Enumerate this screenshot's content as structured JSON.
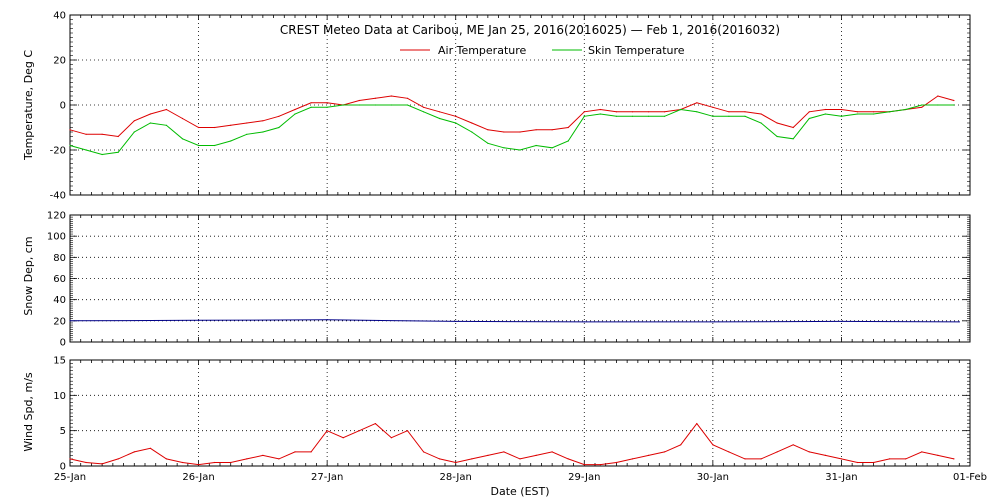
{
  "title": "CREST Meteo Data at Caribou, ME   Jan 25, 2016(2016025) — Feb  1, 2016(2016032)",
  "xlabel": "Date (EST)",
  "x_tick_labels": [
    "25-Jan",
    "26-Jan",
    "27-Jan",
    "28-Jan",
    "29-Jan",
    "30-Jan",
    "31-Jan",
    "01-Feb"
  ],
  "colors": {
    "air": "#dd0000",
    "skin": "#00bb00",
    "snow": "#000088",
    "wind": "#dd0000",
    "grid": "#000000"
  },
  "chart_data": [
    {
      "type": "line",
      "ylabel": "Temperature, Deg C",
      "ylim": [
        -40,
        40
      ],
      "yticks": [
        -40,
        -20,
        0,
        20,
        40
      ],
      "xlim": [
        "2016-01-25",
        "2016-02-01"
      ],
      "grid": true,
      "legend": "top-center",
      "series": [
        {
          "name": "Air Temperature",
          "x": [
            "2016-01-25 00:00",
            "2016-01-25 03:00",
            "2016-01-25 06:00",
            "2016-01-25 09:00",
            "2016-01-25 12:00",
            "2016-01-25 15:00",
            "2016-01-25 18:00",
            "2016-01-25 21:00",
            "2016-01-26 00:00",
            "2016-01-26 03:00",
            "2016-01-26 06:00",
            "2016-01-26 09:00",
            "2016-01-26 12:00",
            "2016-01-26 15:00",
            "2016-01-26 18:00",
            "2016-01-26 21:00",
            "2016-01-27 00:00",
            "2016-01-27 03:00",
            "2016-01-27 06:00",
            "2016-01-27 09:00",
            "2016-01-27 12:00",
            "2016-01-27 15:00",
            "2016-01-27 18:00",
            "2016-01-27 21:00",
            "2016-01-28 00:00",
            "2016-01-28 03:00",
            "2016-01-28 06:00",
            "2016-01-28 09:00",
            "2016-01-28 12:00",
            "2016-01-28 15:00",
            "2016-01-28 18:00",
            "2016-01-28 21:00",
            "2016-01-29 00:00",
            "2016-01-29 03:00",
            "2016-01-29 06:00",
            "2016-01-29 09:00",
            "2016-01-29 12:00",
            "2016-01-29 15:00",
            "2016-01-29 18:00",
            "2016-01-29 21:00",
            "2016-01-30 00:00",
            "2016-01-30 03:00",
            "2016-01-30 06:00",
            "2016-01-30 09:00",
            "2016-01-30 12:00",
            "2016-01-30 15:00",
            "2016-01-30 18:00",
            "2016-01-30 21:00",
            "2016-01-31 00:00",
            "2016-01-31 03:00",
            "2016-01-31 06:00",
            "2016-01-31 09:00",
            "2016-01-31 12:00",
            "2016-01-31 15:00",
            "2016-01-31 18:00",
            "2016-01-31 21:00"
          ],
          "y": [
            -11,
            -13,
            -13,
            -14,
            -7,
            -4,
            -2,
            -6,
            -10,
            -10,
            -9,
            -8,
            -7,
            -5,
            -2,
            1,
            1,
            0,
            2,
            3,
            4,
            3,
            -1,
            -3,
            -5,
            -8,
            -11,
            -12,
            -12,
            -11,
            -11,
            -10,
            -3,
            -2,
            -3,
            -3,
            -3,
            -3,
            -2,
            1,
            -1,
            -3,
            -3,
            -4,
            -8,
            -10,
            -3,
            -2,
            -2,
            -3,
            -3,
            -3,
            -2,
            -1,
            4,
            2
          ]
        },
        {
          "name": "Skin Temperature",
          "x": [
            "2016-01-25 00:00",
            "2016-01-25 03:00",
            "2016-01-25 06:00",
            "2016-01-25 09:00",
            "2016-01-25 12:00",
            "2016-01-25 15:00",
            "2016-01-25 18:00",
            "2016-01-25 21:00",
            "2016-01-26 00:00",
            "2016-01-26 03:00",
            "2016-01-26 06:00",
            "2016-01-26 09:00",
            "2016-01-26 12:00",
            "2016-01-26 15:00",
            "2016-01-26 18:00",
            "2016-01-26 21:00",
            "2016-01-27 00:00",
            "2016-01-27 03:00",
            "2016-01-27 06:00",
            "2016-01-27 09:00",
            "2016-01-27 12:00",
            "2016-01-27 15:00",
            "2016-01-27 18:00",
            "2016-01-27 21:00",
            "2016-01-28 00:00",
            "2016-01-28 03:00",
            "2016-01-28 06:00",
            "2016-01-28 09:00",
            "2016-01-28 12:00",
            "2016-01-28 15:00",
            "2016-01-28 18:00",
            "2016-01-28 21:00",
            "2016-01-29 00:00",
            "2016-01-29 03:00",
            "2016-01-29 06:00",
            "2016-01-29 09:00",
            "2016-01-29 12:00",
            "2016-01-29 15:00",
            "2016-01-29 18:00",
            "2016-01-29 21:00",
            "2016-01-30 00:00",
            "2016-01-30 03:00",
            "2016-01-30 06:00",
            "2016-01-30 09:00",
            "2016-01-30 12:00",
            "2016-01-30 15:00",
            "2016-01-30 18:00",
            "2016-01-30 21:00",
            "2016-01-31 00:00",
            "2016-01-31 03:00",
            "2016-01-31 06:00",
            "2016-01-31 09:00",
            "2016-01-31 12:00",
            "2016-01-31 15:00",
            "2016-01-31 18:00",
            "2016-01-31 21:00"
          ],
          "y": [
            -18,
            -20,
            -22,
            -21,
            -12,
            -8,
            -9,
            -15,
            -18,
            -18,
            -16,
            -13,
            -12,
            -10,
            -4,
            -1,
            -1,
            0,
            0,
            0,
            0,
            0,
            -3,
            -6,
            -8,
            -12,
            -17,
            -19,
            -20,
            -18,
            -19,
            -16,
            -5,
            -4,
            -5,
            -5,
            -5,
            -5,
            -2,
            -3,
            -5,
            -5,
            -5,
            -8,
            -14,
            -15,
            -6,
            -4,
            -5,
            -4,
            -4,
            -3,
            -2,
            0,
            0,
            0
          ]
        }
      ]
    },
    {
      "type": "line",
      "ylabel": "Snow Dep, cm",
      "ylim": [
        0,
        120
      ],
      "yticks": [
        0,
        20,
        40,
        60,
        80,
        100,
        120
      ],
      "grid": true,
      "series": [
        {
          "x": [
            "2016-01-25 00:00",
            "2016-01-26 00:00",
            "2016-01-27 00:00",
            "2016-01-28 00:00",
            "2016-01-29 00:00",
            "2016-01-30 00:00",
            "2016-01-31 00:00",
            "2016-01-31 22:00"
          ],
          "y": [
            20,
            20.5,
            21,
            19.5,
            19,
            19,
            19.5,
            19
          ]
        }
      ]
    },
    {
      "type": "line",
      "ylabel": "Wind Spd, m/s",
      "ylim": [
        0,
        15
      ],
      "yticks": [
        0,
        5,
        10,
        15
      ],
      "grid": true,
      "series": [
        {
          "x": [
            "2016-01-25 00:00",
            "2016-01-25 03:00",
            "2016-01-25 06:00",
            "2016-01-25 09:00",
            "2016-01-25 12:00",
            "2016-01-25 15:00",
            "2016-01-25 18:00",
            "2016-01-25 21:00",
            "2016-01-26 00:00",
            "2016-01-26 03:00",
            "2016-01-26 06:00",
            "2016-01-26 09:00",
            "2016-01-26 12:00",
            "2016-01-26 15:00",
            "2016-01-26 18:00",
            "2016-01-26 21:00",
            "2016-01-27 00:00",
            "2016-01-27 03:00",
            "2016-01-27 06:00",
            "2016-01-27 09:00",
            "2016-01-27 12:00",
            "2016-01-27 15:00",
            "2016-01-27 18:00",
            "2016-01-27 21:00",
            "2016-01-28 00:00",
            "2016-01-28 03:00",
            "2016-01-28 06:00",
            "2016-01-28 09:00",
            "2016-01-28 12:00",
            "2016-01-28 15:00",
            "2016-01-28 18:00",
            "2016-01-28 21:00",
            "2016-01-29 00:00",
            "2016-01-29 03:00",
            "2016-01-29 06:00",
            "2016-01-29 09:00",
            "2016-01-29 12:00",
            "2016-01-29 15:00",
            "2016-01-29 18:00",
            "2016-01-29 21:00",
            "2016-01-30 00:00",
            "2016-01-30 03:00",
            "2016-01-30 06:00",
            "2016-01-30 09:00",
            "2016-01-30 12:00",
            "2016-01-30 15:00",
            "2016-01-30 18:00",
            "2016-01-30 21:00",
            "2016-01-31 00:00",
            "2016-01-31 03:00",
            "2016-01-31 06:00",
            "2016-01-31 09:00",
            "2016-01-31 12:00",
            "2016-01-31 15:00",
            "2016-01-31 18:00",
            "2016-01-31 21:00"
          ],
          "y": [
            1,
            0.5,
            0.3,
            1,
            2,
            2.5,
            1,
            0.5,
            0.2,
            0.5,
            0.5,
            1,
            1.5,
            1,
            2,
            2,
            5,
            4,
            5,
            6,
            4,
            5,
            2,
            1,
            0.5,
            1,
            1.5,
            2,
            1,
            1.5,
            2,
            1,
            0.2,
            0.2,
            0.5,
            1,
            1.5,
            2,
            3,
            6,
            3,
            2,
            1,
            1,
            2,
            3,
            2,
            1.5,
            1,
            0.5,
            0.5,
            1,
            1,
            2,
            1.5,
            1
          ]
        }
      ]
    }
  ]
}
